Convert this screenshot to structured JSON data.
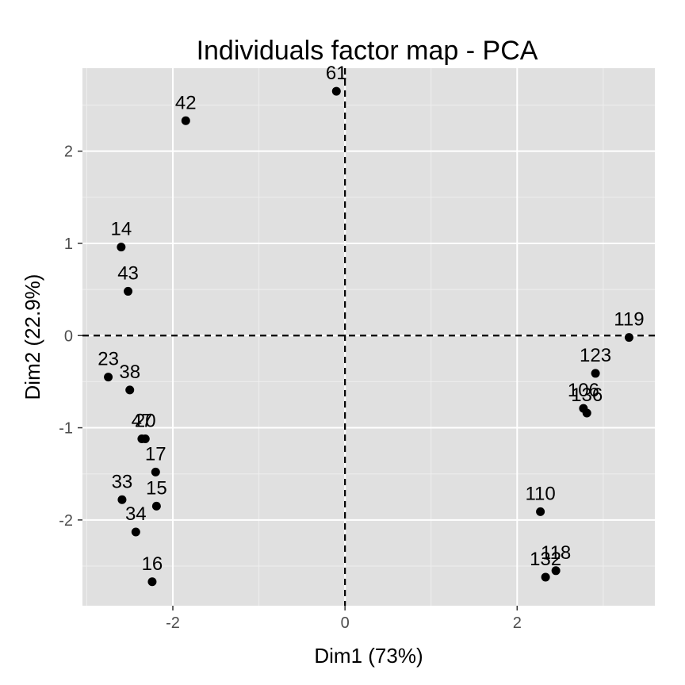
{
  "chart_data": {
    "type": "scatter",
    "title": "Individuals factor map - PCA",
    "xlabel": "Dim1 (73%)",
    "ylabel": "Dim2 (22.9%)",
    "xlim": [
      -3.05,
      3.6
    ],
    "ylim": [
      -2.93,
      2.9
    ],
    "x_ticks": [
      -2,
      0,
      2
    ],
    "y_ticks": [
      -2,
      -1,
      0,
      1,
      2
    ],
    "x_tick_labels": [
      "-2",
      "0",
      "2"
    ],
    "y_tick_labels": [
      "-2",
      "-1",
      "0",
      "1",
      "2"
    ],
    "grid": true,
    "reference_lines": {
      "x": 0,
      "y": 0,
      "style": "dashed"
    },
    "points": [
      {
        "label": "61",
        "x": -0.1,
        "y": 2.65
      },
      {
        "label": "42",
        "x": -1.85,
        "y": 2.33
      },
      {
        "label": "14",
        "x": -2.6,
        "y": 0.96
      },
      {
        "label": "43",
        "x": -2.52,
        "y": 0.48
      },
      {
        "label": "23",
        "x": -2.75,
        "y": -0.45
      },
      {
        "label": "38",
        "x": -2.5,
        "y": -0.59
      },
      {
        "label": "47",
        "x": -2.36,
        "y": -1.12
      },
      {
        "label": "20",
        "x": -2.32,
        "y": -1.12
      },
      {
        "label": "17",
        "x": -2.2,
        "y": -1.48
      },
      {
        "label": "15",
        "x": -2.19,
        "y": -1.85
      },
      {
        "label": "33",
        "x": -2.59,
        "y": -1.78
      },
      {
        "label": "34",
        "x": -2.43,
        "y": -2.13
      },
      {
        "label": "16",
        "x": -2.24,
        "y": -2.67
      },
      {
        "label": "119",
        "x": 3.3,
        "y": -0.02
      },
      {
        "label": "123",
        "x": 2.91,
        "y": -0.41
      },
      {
        "label": "106",
        "x": 2.77,
        "y": -0.79
      },
      {
        "label": "136",
        "x": 2.81,
        "y": -0.84
      },
      {
        "label": "110",
        "x": 2.27,
        "y": -1.91
      },
      {
        "label": "118",
        "x": 2.45,
        "y": -2.55
      },
      {
        "label": "132",
        "x": 2.33,
        "y": -2.62
      }
    ],
    "colors": {
      "panel": "#e0e0e0",
      "grid_major": "#ffffff",
      "grid_minor": "#eeeeee",
      "point": "#000000",
      "tick_label": "#4d4d4d"
    }
  }
}
